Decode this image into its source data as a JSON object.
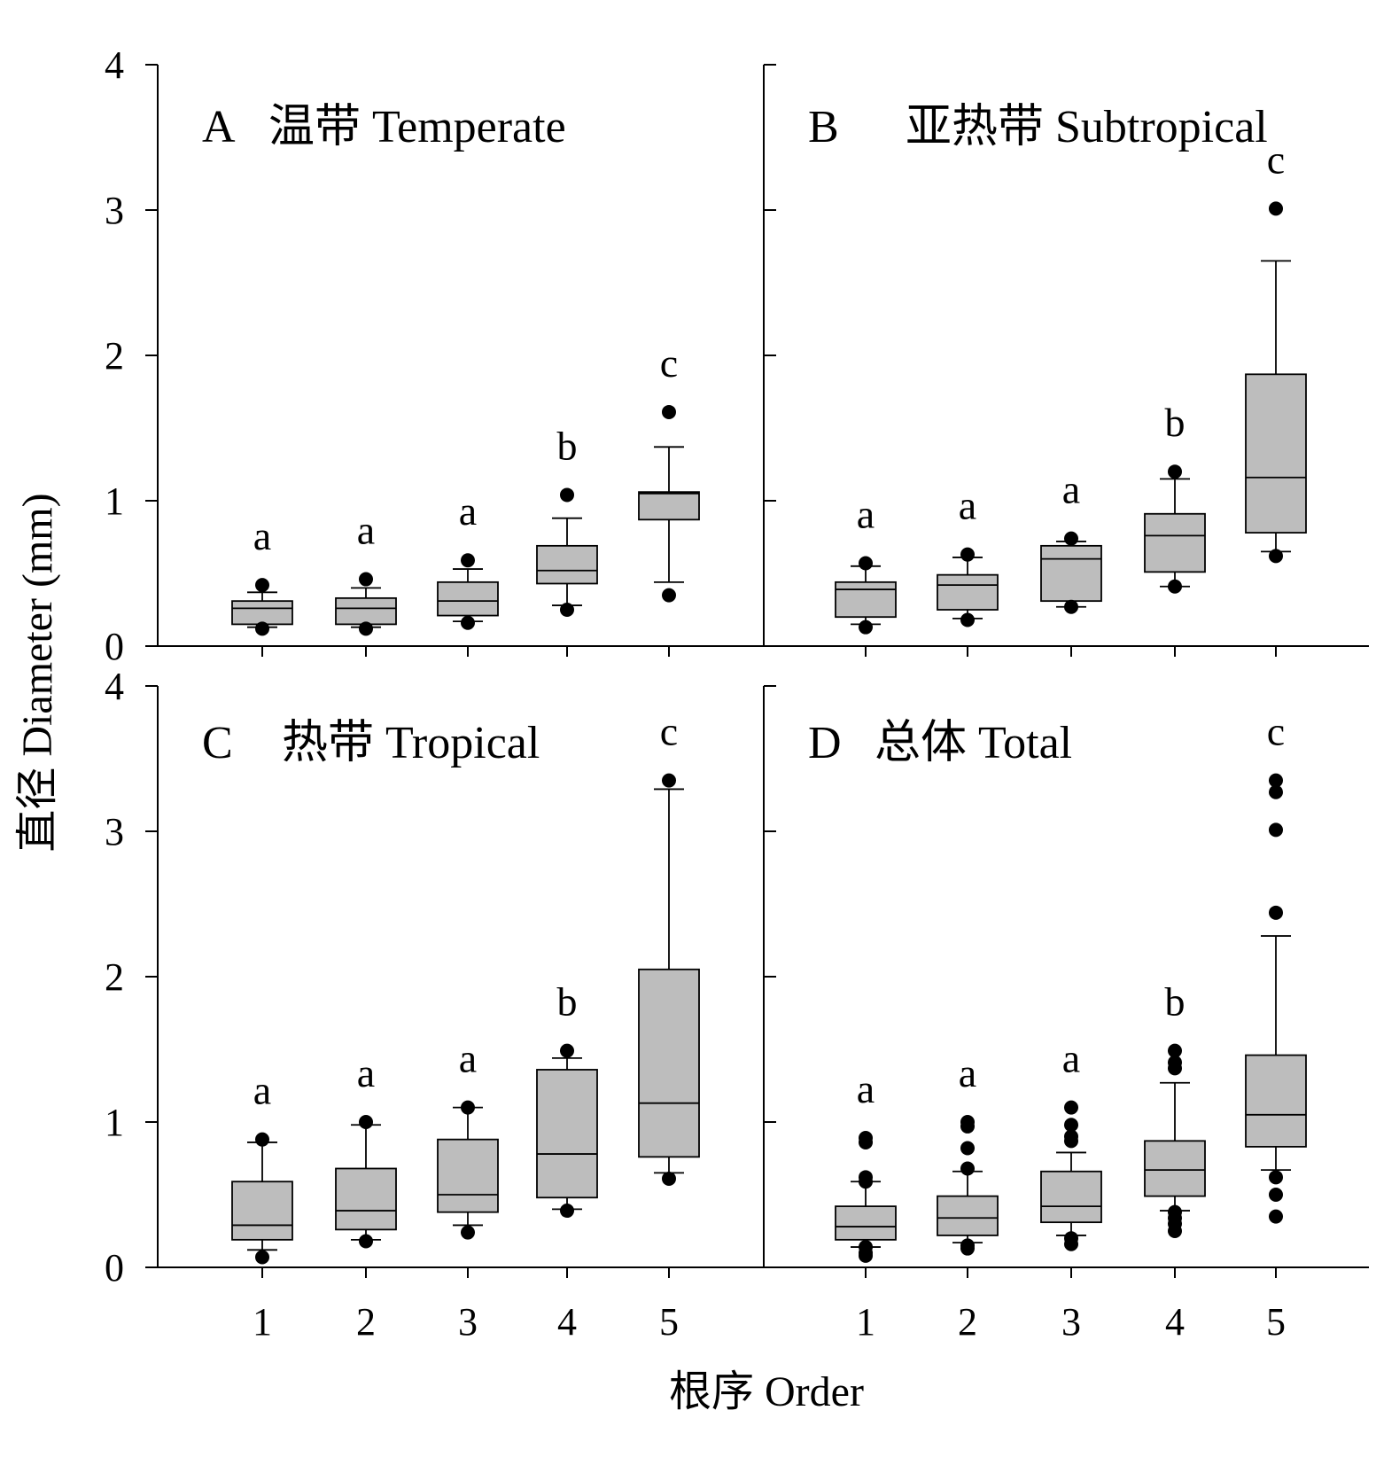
{
  "chart_data": {
    "type": "box",
    "xlabel": "根序 Order",
    "ylabel": "直径 Diameter (mm)",
    "ylim": [
      0,
      4
    ],
    "yticks": [
      "0",
      "1",
      "2",
      "3",
      "4"
    ],
    "categories": [
      "1",
      "2",
      "3",
      "4",
      "5"
    ],
    "grid": false,
    "panels": [
      {
        "letter": "A",
        "title": "温带 Temperate",
        "boxes": [
          {
            "q1": 0.15,
            "median": 0.26,
            "q3": 0.31,
            "whisker_low": 0.13,
            "whisker_high": 0.37,
            "outliers": [
              0.42,
              0.12
            ],
            "letter": "a"
          },
          {
            "q1": 0.15,
            "median": 0.26,
            "q3": 0.33,
            "whisker_low": 0.13,
            "whisker_high": 0.4,
            "outliers": [
              0.46,
              0.12
            ],
            "letter": "a"
          },
          {
            "q1": 0.21,
            "median": 0.31,
            "q3": 0.44,
            "whisker_low": 0.17,
            "whisker_high": 0.53,
            "outliers": [
              0.59,
              0.16
            ],
            "letter": "a"
          },
          {
            "q1": 0.43,
            "median": 0.52,
            "q3": 0.69,
            "whisker_low": 0.28,
            "whisker_high": 0.88,
            "outliers": [
              1.04,
              0.25
            ],
            "letter": "b"
          },
          {
            "q1": 0.87,
            "median": 1.05,
            "q3": 1.06,
            "whisker_low": 0.44,
            "whisker_high": 1.37,
            "outliers": [
              1.61,
              0.35
            ],
            "letter": "c"
          }
        ]
      },
      {
        "letter": "B",
        "title": "亚热带 Subtropical",
        "boxes": [
          {
            "q1": 0.2,
            "median": 0.39,
            "q3": 0.44,
            "whisker_low": 0.15,
            "whisker_high": 0.55,
            "outliers": [
              0.57,
              0.13
            ],
            "letter": "a"
          },
          {
            "q1": 0.25,
            "median": 0.42,
            "q3": 0.49,
            "whisker_low": 0.19,
            "whisker_high": 0.61,
            "outliers": [
              0.63,
              0.18
            ],
            "letter": "a"
          },
          {
            "q1": 0.31,
            "median": 0.6,
            "q3": 0.69,
            "whisker_low": 0.27,
            "whisker_high": 0.72,
            "outliers": [
              0.74,
              0.27
            ],
            "letter": "a"
          },
          {
            "q1": 0.51,
            "median": 0.76,
            "q3": 0.91,
            "whisker_low": 0.41,
            "whisker_high": 1.15,
            "outliers": [
              1.2,
              0.41
            ],
            "letter": "b"
          },
          {
            "q1": 0.78,
            "median": 1.16,
            "q3": 1.87,
            "whisker_low": 0.65,
            "whisker_high": 2.65,
            "outliers": [
              3.01,
              0.62
            ],
            "letter": "c"
          }
        ]
      },
      {
        "letter": "C",
        "title": "热带 Tropical",
        "boxes": [
          {
            "q1": 0.19,
            "median": 0.29,
            "q3": 0.59,
            "whisker_low": 0.12,
            "whisker_high": 0.86,
            "outliers": [
              0.88,
              0.07
            ],
            "letter": "a"
          },
          {
            "q1": 0.26,
            "median": 0.39,
            "q3": 0.68,
            "whisker_low": 0.19,
            "whisker_high": 0.98,
            "outliers": [
              1.0,
              0.18
            ],
            "letter": "a"
          },
          {
            "q1": 0.38,
            "median": 0.5,
            "q3": 0.88,
            "whisker_low": 0.29,
            "whisker_high": 1.1,
            "outliers": [
              1.1,
              0.24
            ],
            "letter": "a"
          },
          {
            "q1": 0.48,
            "median": 0.78,
            "q3": 1.36,
            "whisker_low": 0.4,
            "whisker_high": 1.44,
            "outliers": [
              1.49,
              0.39
            ],
            "letter": "b"
          },
          {
            "q1": 0.76,
            "median": 1.13,
            "q3": 2.05,
            "whisker_low": 0.65,
            "whisker_high": 3.29,
            "outliers": [
              3.35,
              0.61
            ],
            "letter": "c"
          }
        ]
      },
      {
        "letter": "D",
        "title": "总体 Total",
        "boxes": [
          {
            "q1": 0.19,
            "median": 0.28,
            "q3": 0.42,
            "whisker_low": 0.14,
            "whisker_high": 0.59,
            "outliers": [
              0.89,
              0.86,
              0.62,
              0.59,
              0.14,
              0.1,
              0.08
            ],
            "letter": "a"
          },
          {
            "q1": 0.22,
            "median": 0.34,
            "q3": 0.49,
            "whisker_low": 0.17,
            "whisker_high": 0.66,
            "outliers": [
              1.0,
              0.97,
              0.82,
              0.68,
              0.15,
              0.13
            ],
            "letter": "a"
          },
          {
            "q1": 0.31,
            "median": 0.42,
            "q3": 0.66,
            "whisker_low": 0.22,
            "whisker_high": 0.79,
            "outliers": [
              1.1,
              0.98,
              0.9,
              0.87,
              0.2,
              0.16
            ],
            "letter": "a"
          },
          {
            "q1": 0.49,
            "median": 0.67,
            "q3": 0.87,
            "whisker_low": 0.39,
            "whisker_high": 1.27,
            "outliers": [
              1.49,
              1.41,
              1.37,
              0.38,
              0.34,
              0.3,
              0.25
            ],
            "letter": "b"
          },
          {
            "q1": 0.83,
            "median": 1.05,
            "q3": 1.46,
            "whisker_low": 0.67,
            "whisker_high": 2.28,
            "outliers": [
              3.35,
              3.27,
              3.01,
              2.44,
              0.62,
              0.5,
              0.35
            ],
            "letter": "c"
          }
        ]
      }
    ]
  }
}
